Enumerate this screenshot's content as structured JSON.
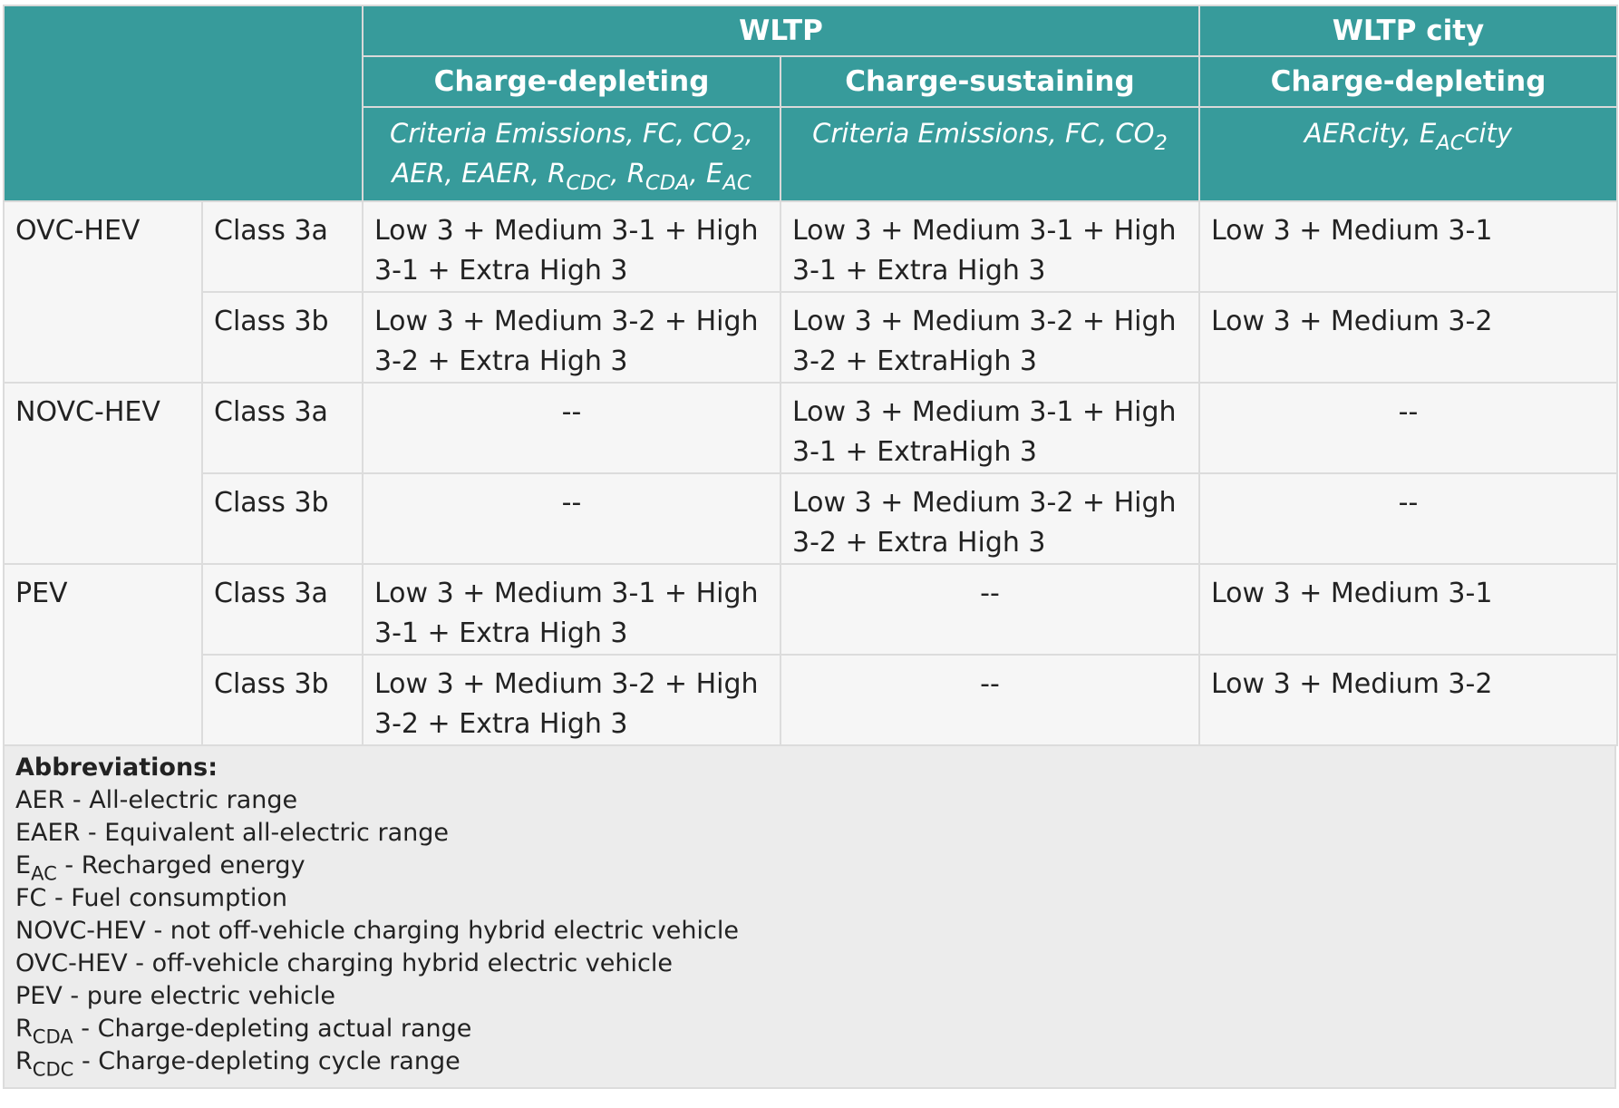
{
  "header": {
    "wltp": "WLTP",
    "wltp_city": "WLTP city",
    "charge_depleting": "Charge-depleting",
    "charge_sustaining": "Charge-sustaining",
    "charge_depleting_city": "Charge-depleting",
    "cd_params": {
      "line1": "Criteria Emissions, FC, CO",
      "line1_sub": "2",
      "line1_tail": ",",
      "aer": "AER, EAER, R",
      "rcdc_sub": "CDC",
      "sep1": ", R",
      "rcda_sub": "CDA",
      "sep2": ", E",
      "eac_sub": "AC"
    },
    "cs_params": {
      "text": "Criteria Emissions, FC, CO",
      "sub": "2"
    },
    "city_params": {
      "text": "AERcity, E",
      "sub": "AC",
      "tail": "city"
    }
  },
  "rows": [
    {
      "group": "OVC-HEV",
      "class": "Class 3a",
      "wltp_cd": "Low 3 + Medium 3-1 + High 3-1 + Extra High 3",
      "wltp_cs": "Low 3 + Medium 3-1 + High 3-1 + Extra High 3",
      "city_cd": "Low 3 + Medium 3-1"
    },
    {
      "group": "",
      "class": "Class 3b",
      "wltp_cd": "Low 3 + Medium 3-2 + High 3-2 + Extra High 3",
      "wltp_cs": "Low 3 + Medium 3-2 + High 3-2 + ExtraHigh 3",
      "city_cd": "Low 3 + Medium 3-2"
    },
    {
      "group": "NOVC-HEV",
      "class": "Class 3a",
      "wltp_cd": "--",
      "wltp_cs": "Low 3 + Medium 3-1 + High 3-1 + ExtraHigh 3",
      "city_cd": "--"
    },
    {
      "group": "",
      "class": "Class 3b",
      "wltp_cd": "--",
      "wltp_cs": "Low 3 + Medium 3-2 + High 3-2 + Extra High 3",
      "city_cd": "--"
    },
    {
      "group": "PEV",
      "class": "Class 3a",
      "wltp_cd": "Low 3 + Medium 3-1 + High 3-1 + Extra High 3",
      "wltp_cs": "--",
      "city_cd": "Low 3 + Medium 3-1"
    },
    {
      "group": "",
      "class": "Class 3b",
      "wltp_cd": "Low 3 + Medium 3-2 + High 3-2 + Extra High 3",
      "wltp_cs": "--",
      "city_cd": "Low 3 + Medium 3-2"
    }
  ],
  "abbreviations": {
    "title": "Abbreviations:",
    "aer": "AER - All-electric range",
    "eaer": "EAER - Equivalent all-electric range",
    "eac_main": "E",
    "eac_sub": "AC",
    "eac_text": " - Recharged energy",
    "fc": "FC - Fuel consumption",
    "novc": "NOVC-HEV - not off-vehicle charging hybrid electric vehicle",
    "ovc": "OVC-HEV - off-vehicle charging hybrid electric vehicle",
    "pev": "PEV - pure electric vehicle",
    "rcda_main": "R",
    "rcda_sub": "CDA",
    "rcda_text": " - Charge-depleting actual range",
    "rcdc_main": "R",
    "rcdc_sub": "CDC",
    "rcdc_text": " - Charge-depleting cycle range"
  },
  "colors": {
    "header_bg": "#379b9b",
    "header_text": "#ffffff",
    "cell_bg": "#f6f6f6",
    "notes_bg": "#ececec"
  }
}
